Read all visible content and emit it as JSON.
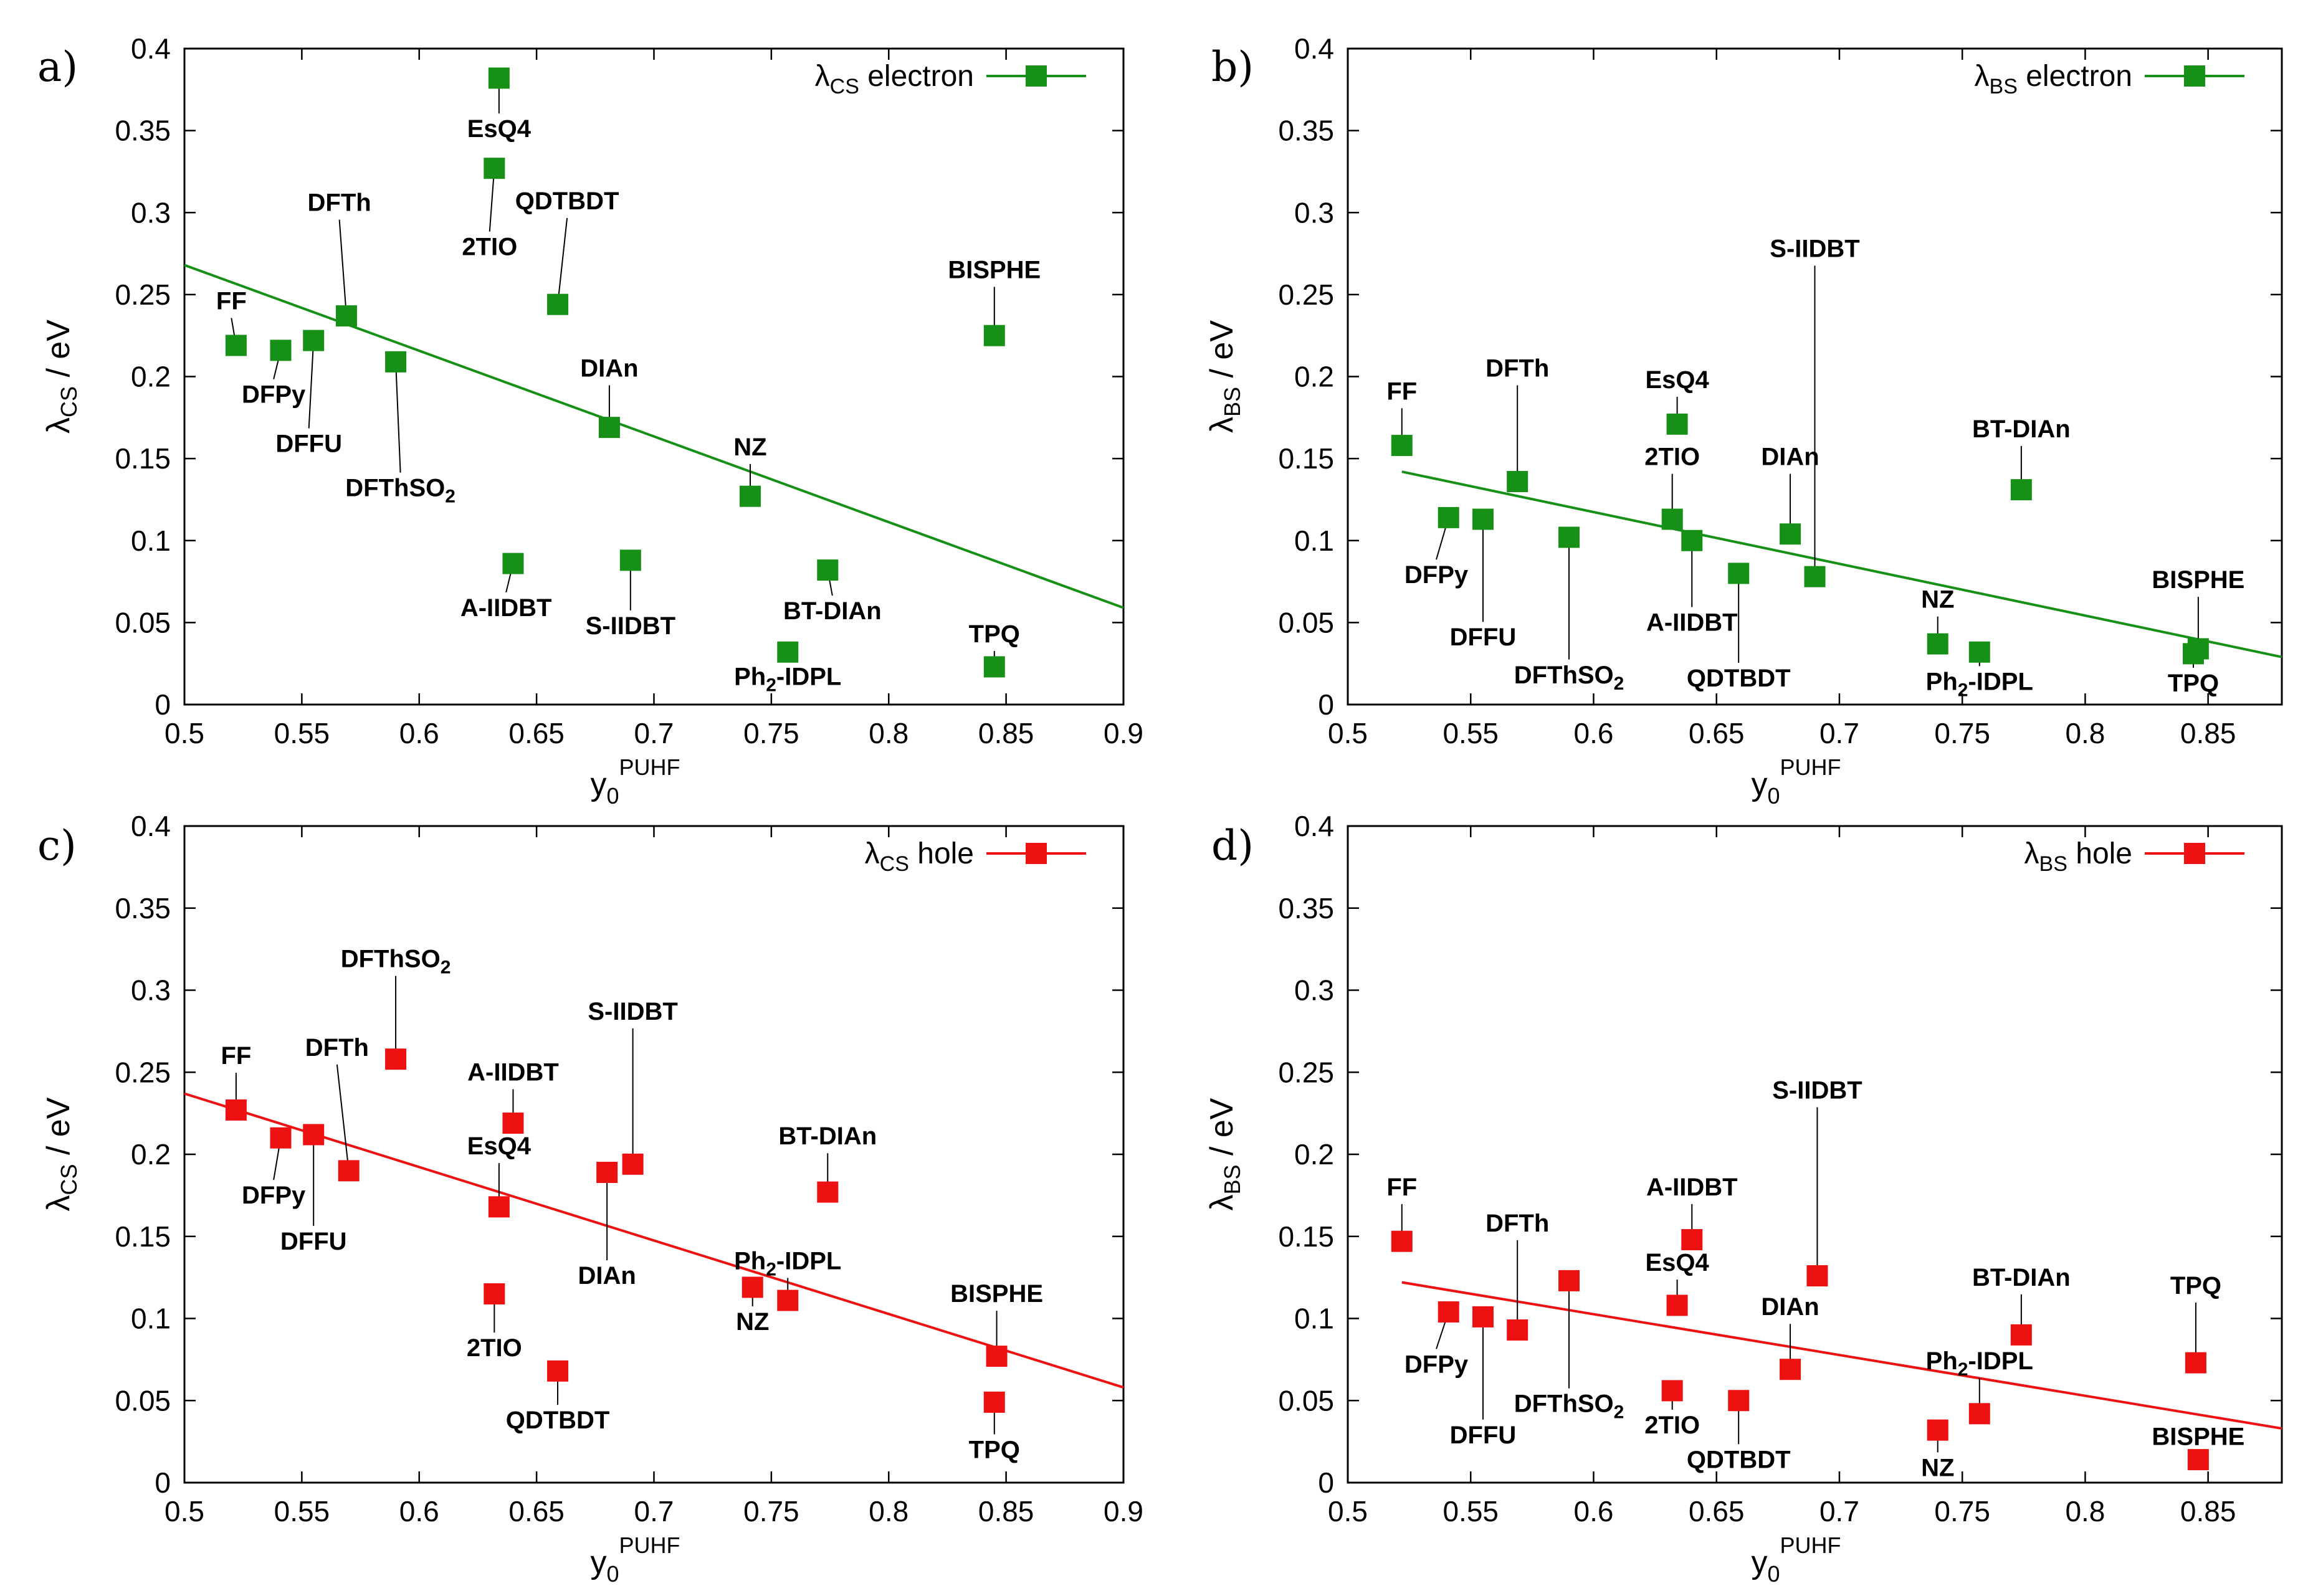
{
  "chart_data": [
    {
      "type": "scatter",
      "panel_label": "a)",
      "series_name": "λCS electron",
      "legend": {
        "main": "λ",
        "sub": "CS",
        "rest": " electron"
      },
      "ylabel": {
        "main": "λ",
        "sub": "CS",
        "rest": " / eV"
      },
      "xlabel": {
        "main": "y",
        "sub": "0",
        "sup": "PUHF"
      },
      "xlim": [
        0.5,
        0.9
      ],
      "ylim": [
        0,
        0.4
      ],
      "xticks": [
        "0.5",
        "0.55",
        "0.6",
        "0.65",
        "0.7",
        "0.75",
        "0.8",
        "0.85",
        "0.9"
      ],
      "yticks": [
        "0",
        "0.05",
        "0.1",
        "0.15",
        "0.2",
        "0.25",
        "0.3",
        "0.35",
        "0.4"
      ],
      "color": "#169016",
      "fit_line": [
        [
          0.5,
          0.268
        ],
        [
          0.9,
          0.059
        ]
      ],
      "points": [
        {
          "name": "FF",
          "x": 0.522,
          "y": 0.219,
          "lx": 0.52,
          "ly": 0.241
        },
        {
          "name": "DFPy",
          "x": 0.541,
          "y": 0.216,
          "lx": 0.538,
          "ly": 0.184
        },
        {
          "name": "DFFU",
          "x": 0.555,
          "y": 0.222,
          "lx": 0.553,
          "ly": 0.154
        },
        {
          "name": "DFTh",
          "x": 0.569,
          "y": 0.237,
          "lx": 0.566,
          "ly": 0.301
        },
        {
          "name": "DFThSO2",
          "sub": "2",
          "x": 0.59,
          "y": 0.209,
          "lx": 0.592,
          "ly": 0.127
        },
        {
          "name": "EsQ4",
          "x": 0.634,
          "y": 0.382,
          "lx": 0.634,
          "ly": 0.346
        },
        {
          "name": "2TIO",
          "x": 0.632,
          "y": 0.327,
          "lx": 0.63,
          "ly": 0.274
        },
        {
          "name": "QDTBDT",
          "x": 0.659,
          "y": 0.244,
          "lx": 0.663,
          "ly": 0.302
        },
        {
          "name": "DIAn",
          "x": 0.681,
          "y": 0.169,
          "lx": 0.681,
          "ly": 0.2
        },
        {
          "name": "NZ",
          "x": 0.741,
          "y": 0.127,
          "lx": 0.741,
          "ly": 0.152
        },
        {
          "name": "A-IIDBT",
          "x": 0.64,
          "y": 0.086,
          "lx": 0.637,
          "ly": 0.054
        },
        {
          "name": "S-IIDBT",
          "x": 0.69,
          "y": 0.088,
          "lx": 0.69,
          "ly": 0.043
        },
        {
          "name": "BT-DIAn",
          "x": 0.774,
          "y": 0.082,
          "lx": 0.776,
          "ly": 0.052
        },
        {
          "name": "Ph2-IDPL",
          "sub": "2",
          "x": 0.757,
          "y": 0.032,
          "lx": 0.757,
          "ly": 0.012
        },
        {
          "name": "BISPHE",
          "x": 0.845,
          "y": 0.225,
          "lx": 0.845,
          "ly": 0.26
        },
        {
          "name": "TPQ",
          "x": 0.845,
          "y": 0.023,
          "lx": 0.845,
          "ly": 0.038
        }
      ]
    },
    {
      "type": "scatter",
      "panel_label": "b)",
      "series_name": "λBS electron",
      "legend": {
        "main": "λ",
        "sub": "BS",
        "rest": " electron"
      },
      "ylabel": {
        "main": "λ",
        "sub": "BS",
        "rest": " / eV"
      },
      "xlabel": {
        "main": "y",
        "sub": "0",
        "sup": "PUHF"
      },
      "xlim": [
        0.5,
        0.88
      ],
      "ylim": [
        0,
        0.4
      ],
      "xticks": [
        "0.5",
        "0.55",
        "0.6",
        "0.65",
        "0.7",
        "0.75",
        "0.8",
        "0.85"
      ],
      "yticks": [
        "0",
        "0.05",
        "0.1",
        "0.15",
        "0.2",
        "0.25",
        "0.3",
        "0.35",
        "0.4"
      ],
      "color": "#169016",
      "fit_line": [
        [
          0.522,
          0.142
        ],
        [
          0.88,
          0.029
        ]
      ],
      "points": [
        {
          "name": "FF",
          "x": 0.522,
          "y": 0.158,
          "lx": 0.522,
          "ly": 0.186
        },
        {
          "name": "DFPy",
          "x": 0.541,
          "y": 0.114,
          "lx": 0.536,
          "ly": 0.074
        },
        {
          "name": "DFFU",
          "x": 0.555,
          "y": 0.113,
          "lx": 0.555,
          "ly": 0.036
        },
        {
          "name": "DFTh",
          "x": 0.569,
          "y": 0.136,
          "lx": 0.569,
          "ly": 0.2
        },
        {
          "name": "DFThSO2",
          "sub": "2",
          "x": 0.59,
          "y": 0.102,
          "lx": 0.59,
          "ly": 0.013
        },
        {
          "name": "EsQ4",
          "x": 0.634,
          "y": 0.171,
          "lx": 0.634,
          "ly": 0.193
        },
        {
          "name": "2TIO",
          "x": 0.632,
          "y": 0.113,
          "lx": 0.632,
          "ly": 0.146
        },
        {
          "name": "A-IIDBT",
          "x": 0.64,
          "y": 0.1,
          "lx": 0.64,
          "ly": 0.045
        },
        {
          "name": "QDTBDT",
          "x": 0.659,
          "y": 0.08,
          "lx": 0.659,
          "ly": 0.011
        },
        {
          "name": "DIAn",
          "x": 0.68,
          "y": 0.104,
          "lx": 0.68,
          "ly": 0.146
        },
        {
          "name": "S-IIDBT",
          "x": 0.69,
          "y": 0.078,
          "lx": 0.69,
          "ly": 0.273
        },
        {
          "name": "NZ",
          "x": 0.74,
          "y": 0.037,
          "lx": 0.74,
          "ly": 0.059
        },
        {
          "name": "Ph2-IDPL",
          "sub": "2",
          "x": 0.757,
          "y": 0.032,
          "lx": 0.757,
          "ly": 0.009
        },
        {
          "name": "BT-DIAn",
          "x": 0.774,
          "y": 0.131,
          "lx": 0.774,
          "ly": 0.163
        },
        {
          "name": "BISPHE",
          "x": 0.846,
          "y": 0.034,
          "lx": 0.846,
          "ly": 0.071
        },
        {
          "name": "TPQ",
          "x": 0.844,
          "y": 0.031,
          "lx": 0.844,
          "ly": 0.008
        }
      ]
    },
    {
      "type": "scatter",
      "panel_label": "c)",
      "series_name": "λCS hole",
      "legend": {
        "main": "λ",
        "sub": "CS",
        "rest": " hole"
      },
      "ylabel": {
        "main": "λ",
        "sub": "CS",
        "rest": " / eV"
      },
      "xlabel": {
        "main": "y",
        "sub": "0",
        "sup": "PUHF"
      },
      "xlim": [
        0.5,
        0.9
      ],
      "ylim": [
        0,
        0.4
      ],
      "xticks": [
        "0.5",
        "0.55",
        "0.6",
        "0.65",
        "0.7",
        "0.75",
        "0.8",
        "0.85",
        "0.9"
      ],
      "yticks": [
        "0",
        "0.05",
        "0.1",
        "0.15",
        "0.2",
        "0.25",
        "0.3",
        "0.35",
        "0.4"
      ],
      "color": "#ee1111",
      "fit_line": [
        [
          0.5,
          0.237
        ],
        [
          0.9,
          0.058
        ]
      ],
      "points": [
        {
          "name": "FF",
          "x": 0.522,
          "y": 0.227,
          "lx": 0.522,
          "ly": 0.255
        },
        {
          "name": "DFPy",
          "x": 0.541,
          "y": 0.21,
          "lx": 0.538,
          "ly": 0.17
        },
        {
          "name": "DFFU",
          "x": 0.555,
          "y": 0.212,
          "lx": 0.555,
          "ly": 0.142
        },
        {
          "name": "DFTh",
          "x": 0.57,
          "y": 0.19,
          "lx": 0.565,
          "ly": 0.26
        },
        {
          "name": "DFThSO2",
          "sub": "2",
          "x": 0.59,
          "y": 0.258,
          "lx": 0.59,
          "ly": 0.314
        },
        {
          "name": "A-IIDBT",
          "x": 0.64,
          "y": 0.219,
          "lx": 0.64,
          "ly": 0.245
        },
        {
          "name": "EsQ4",
          "x": 0.634,
          "y": 0.168,
          "lx": 0.634,
          "ly": 0.2
        },
        {
          "name": "2TIO",
          "x": 0.632,
          "y": 0.115,
          "lx": 0.632,
          "ly": 0.077
        },
        {
          "name": "QDTBDT",
          "x": 0.659,
          "y": 0.068,
          "lx": 0.659,
          "ly": 0.033
        },
        {
          "name": "DIAn",
          "x": 0.68,
          "y": 0.189,
          "lx": 0.68,
          "ly": 0.121
        },
        {
          "name": "S-IIDBT",
          "x": 0.691,
          "y": 0.194,
          "lx": 0.691,
          "ly": 0.282
        },
        {
          "name": "NZ",
          "x": 0.742,
          "y": 0.119,
          "lx": 0.742,
          "ly": 0.093
        },
        {
          "name": "Ph2-IDPL",
          "sub": "2",
          "x": 0.757,
          "y": 0.111,
          "lx": 0.757,
          "ly": 0.13
        },
        {
          "name": "BT-DIAn",
          "x": 0.774,
          "y": 0.177,
          "lx": 0.774,
          "ly": 0.206
        },
        {
          "name": "BISPHE",
          "x": 0.846,
          "y": 0.077,
          "lx": 0.846,
          "ly": 0.11
        },
        {
          "name": "TPQ",
          "x": 0.845,
          "y": 0.049,
          "lx": 0.845,
          "ly": 0.015
        }
      ]
    },
    {
      "type": "scatter",
      "panel_label": "d)",
      "series_name": "λBS hole",
      "legend": {
        "main": "λ",
        "sub": "BS",
        "rest": " hole"
      },
      "ylabel": {
        "main": "λ",
        "sub": "BS",
        "rest": " / eV"
      },
      "xlabel": {
        "main": "y",
        "sub": "0",
        "sup": "PUHF"
      },
      "xlim": [
        0.5,
        0.88
      ],
      "ylim": [
        0,
        0.4
      ],
      "xticks": [
        "0.5",
        "0.55",
        "0.6",
        "0.65",
        "0.7",
        "0.75",
        "0.8",
        "0.85"
      ],
      "yticks": [
        "0",
        "0.05",
        "0.1",
        "0.15",
        "0.2",
        "0.25",
        "0.3",
        "0.35",
        "0.4"
      ],
      "color": "#ee1111",
      "fit_line": [
        [
          0.522,
          0.122
        ],
        [
          0.88,
          0.033
        ]
      ],
      "points": [
        {
          "name": "FF",
          "x": 0.522,
          "y": 0.147,
          "lx": 0.522,
          "ly": 0.175
        },
        {
          "name": "DFPy",
          "x": 0.541,
          "y": 0.104,
          "lx": 0.536,
          "ly": 0.067
        },
        {
          "name": "DFFU",
          "x": 0.555,
          "y": 0.101,
          "lx": 0.555,
          "ly": 0.024
        },
        {
          "name": "DFTh",
          "x": 0.569,
          "y": 0.093,
          "lx": 0.569,
          "ly": 0.153
        },
        {
          "name": "DFThSO2",
          "sub": "2",
          "x": 0.59,
          "y": 0.123,
          "lx": 0.59,
          "ly": 0.043
        },
        {
          "name": "A-IIDBT",
          "x": 0.64,
          "y": 0.148,
          "lx": 0.64,
          "ly": 0.175
        },
        {
          "name": "EsQ4",
          "x": 0.634,
          "y": 0.108,
          "lx": 0.634,
          "ly": 0.129
        },
        {
          "name": "2TIO",
          "x": 0.632,
          "y": 0.056,
          "lx": 0.632,
          "ly": 0.03
        },
        {
          "name": "QDTBDT",
          "x": 0.659,
          "y": 0.05,
          "lx": 0.659,
          "ly": 0.009
        },
        {
          "name": "DIAn",
          "x": 0.68,
          "y": 0.069,
          "lx": 0.68,
          "ly": 0.102
        },
        {
          "name": "S-IIDBT",
          "x": 0.691,
          "y": 0.126,
          "lx": 0.691,
          "ly": 0.234
        },
        {
          "name": "NZ",
          "x": 0.74,
          "y": 0.032,
          "lx": 0.74,
          "ly": 0.004
        },
        {
          "name": "Ph2-IDPL",
          "sub": "2",
          "x": 0.757,
          "y": 0.042,
          "lx": 0.757,
          "ly": 0.069
        },
        {
          "name": "BT-DIAn",
          "x": 0.774,
          "y": 0.09,
          "lx": 0.774,
          "ly": 0.12
        },
        {
          "name": "TPQ",
          "x": 0.845,
          "y": 0.073,
          "lx": 0.845,
          "ly": 0.115
        },
        {
          "name": "BISPHE",
          "x": 0.846,
          "y": 0.014,
          "lx": 0.846,
          "ly": 0.023
        }
      ]
    }
  ]
}
